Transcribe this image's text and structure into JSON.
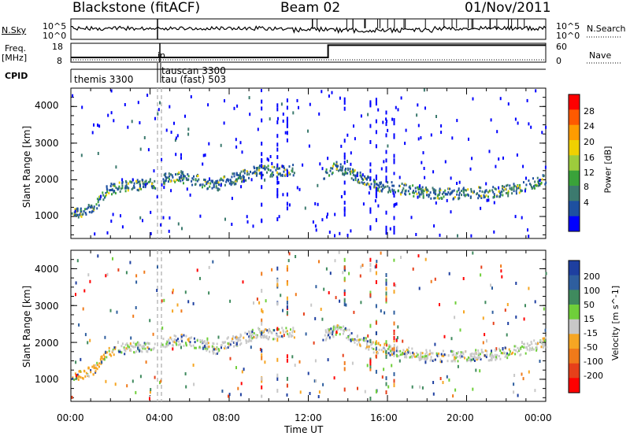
{
  "header": {
    "station": "Blackstone (fitACF)",
    "beam": "Beam 02",
    "date": "01/Nov/2011"
  },
  "top_panels": {
    "nsky_label": "N.Sky",
    "nsearch_label": "N.Search",
    "freq_label_line1": "Freq.",
    "freq_label_line2": "[MHz]",
    "nave_label": "Nave",
    "cpid_label": "CPID",
    "nsky_ticks": [
      "10^5",
      "10^0"
    ],
    "nsearch_ticks": [
      "10^5",
      "10^0"
    ],
    "freq_ticks": [
      "18",
      "8"
    ],
    "nave_ticks": [
      "60",
      "0"
    ],
    "cpid_modes": [
      "themis 3300",
      "tauscan 3300",
      "tau (fast) 503"
    ],
    "cpid_overlap_marker": "in"
  },
  "power_colorbar": {
    "label": "Power [dB]",
    "ticks": [
      "28",
      "24",
      "20",
      "16",
      "12",
      "8",
      "4"
    ],
    "colors": [
      "#ff0000",
      "#ff5a00",
      "#ff9c00",
      "#f0d000",
      "#9dcc3c",
      "#3aa23a",
      "#3c7a6e",
      "#1e50a0",
      "#0000ff"
    ]
  },
  "velocity_colorbar": {
    "label": "Velocity [m s^-1]",
    "ticks": [
      "200",
      "100",
      "50",
      "15",
      "-15",
      "-50",
      "-100",
      "-200"
    ],
    "colors": [
      "#1e3fa0",
      "#2e5e9e",
      "#3f8a5e",
      "#6fcf3a",
      "#c8c8c8",
      "#f6a623",
      "#f07a1a",
      "#e6401a",
      "#ff0000"
    ]
  },
  "axes": {
    "ylabel": "Slant Range [km]",
    "yticks": [
      "4000",
      "3000",
      "2000",
      "1000"
    ],
    "xticks": [
      "00:00",
      "04:00",
      "08:00",
      "12:00",
      "16:00",
      "20:00",
      "00:00"
    ],
    "xlabel": "Time UT"
  },
  "chart_data": [
    {
      "type": "line",
      "title": "N.Sky / N.Search",
      "x_range_hours": [
        0,
        24
      ],
      "ylim_log10": [
        0,
        5
      ]
    },
    {
      "type": "line",
      "title": "Freq. / Nave",
      "freq_MHz": {
        "x": [
          0,
          4.3,
          4.3,
          13.0,
          13.0,
          24
        ],
        "y": [
          10.5,
          10.5,
          10.5,
          10.5,
          17.0,
          17.0
        ]
      },
      "ylim_freq": [
        8,
        18
      ]
    },
    {
      "type": "heatmap",
      "title": "Power",
      "x_unit": "hours UT",
      "y_unit": "km",
      "xlim": [
        0,
        24
      ],
      "ylim": [
        400,
        4500
      ],
      "echo_band_km": {
        "x": [
          0,
          0.5,
          1.2,
          1.8,
          2.5,
          3.5,
          4.3,
          4.6,
          5.5,
          6.5,
          7.3,
          7.8,
          8.5,
          9.0,
          9.5,
          10.2,
          11.0,
          12.8,
          13.5,
          14.5,
          15.5,
          16.5,
          17.5,
          18.5,
          19.5,
          20.5,
          21.5,
          22.5,
          23.5,
          24.0
        ],
        "y": [
          1100,
          1150,
          1300,
          1750,
          1850,
          1900,
          1950,
          2050,
          2100,
          2000,
          1850,
          2000,
          2100,
          2200,
          2300,
          2250,
          2300,
          2200,
          2400,
          2100,
          1850,
          1800,
          1700,
          1650,
          1650,
          1680,
          1700,
          1800,
          1950,
          2050
        ]
      }
    },
    {
      "type": "heatmap",
      "title": "Velocity",
      "x_unit": "hours UT",
      "y_unit": "km",
      "xlim": [
        0,
        24
      ],
      "ylim": [
        400,
        4500
      ]
    }
  ]
}
